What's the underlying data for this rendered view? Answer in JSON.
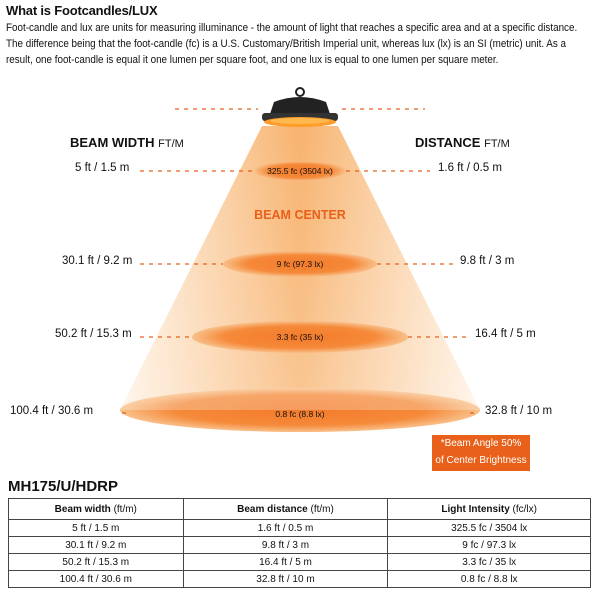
{
  "title": "What is Footcandles/LUX",
  "intro": "Foot-candle and lux are units for measuring illuminance - the amount of light that reaches a specific area and at a specific distance. The difference being that the foot-candle (fc) is a U.S. Customary/British Imperial unit, whereas lux (lx) is an SI (metric) unit. As a result, one foot-candle is equal it one lumen per square foot, and one lux is equal to one lumen per square meter.",
  "diagram": {
    "beam_width_header": "BEAM WIDTH",
    "beam_width_unit": "FT/M",
    "distance_header": "DISTANCE",
    "distance_unit": "FT/M",
    "beam_center": "BEAM CENTER",
    "note_line1": "*Beam Angle 50%",
    "note_line2": "of Center Brightness",
    "levels": [
      {
        "width": "5 ft / 1.5 m",
        "distance": "1.6 ft / 0.5 m",
        "intensity": "325.5 fc (3504 lx)"
      },
      {
        "width": "30.1 ft / 9.2 m",
        "distance": "9.8 ft / 3 m",
        "intensity": "9 fc (97.3 lx)"
      },
      {
        "width": "50.2 ft / 15.3 m",
        "distance": "16.4 ft / 5 m",
        "intensity": "3.3 fc (35 lx)"
      },
      {
        "width": "100.4 ft / 30.6 m",
        "distance": "32.8 ft / 10 m",
        "intensity": "0.8 fc (8.8 lx)"
      }
    ],
    "colors": {
      "accent": "#e8601a",
      "beam_light": "#fde6c8",
      "beam_dark": "#f6a55a"
    }
  },
  "model": "MH175/U/HDRP",
  "table": {
    "headers": [
      {
        "label": "Beam width",
        "unit": "(ft/m)"
      },
      {
        "label": "Beam distance",
        "unit": "(ft/m)"
      },
      {
        "label": "Light Intensity",
        "unit": "(fc/lx)"
      }
    ],
    "rows": [
      [
        "5 ft / 1.5 m",
        "1.6 ft / 0.5 m",
        "325.5 fc / 3504 lx"
      ],
      [
        "30.1 ft / 9.2 m",
        "9.8 ft / 3 m",
        "9 fc / 97.3 lx"
      ],
      [
        "50.2 ft / 15.3 m",
        "16.4 ft / 5 m",
        "3.3 fc / 35 lx"
      ],
      [
        "100.4 ft / 30.6 m",
        "32.8 ft / 10 m",
        "0.8 fc / 8.8 lx"
      ]
    ]
  }
}
